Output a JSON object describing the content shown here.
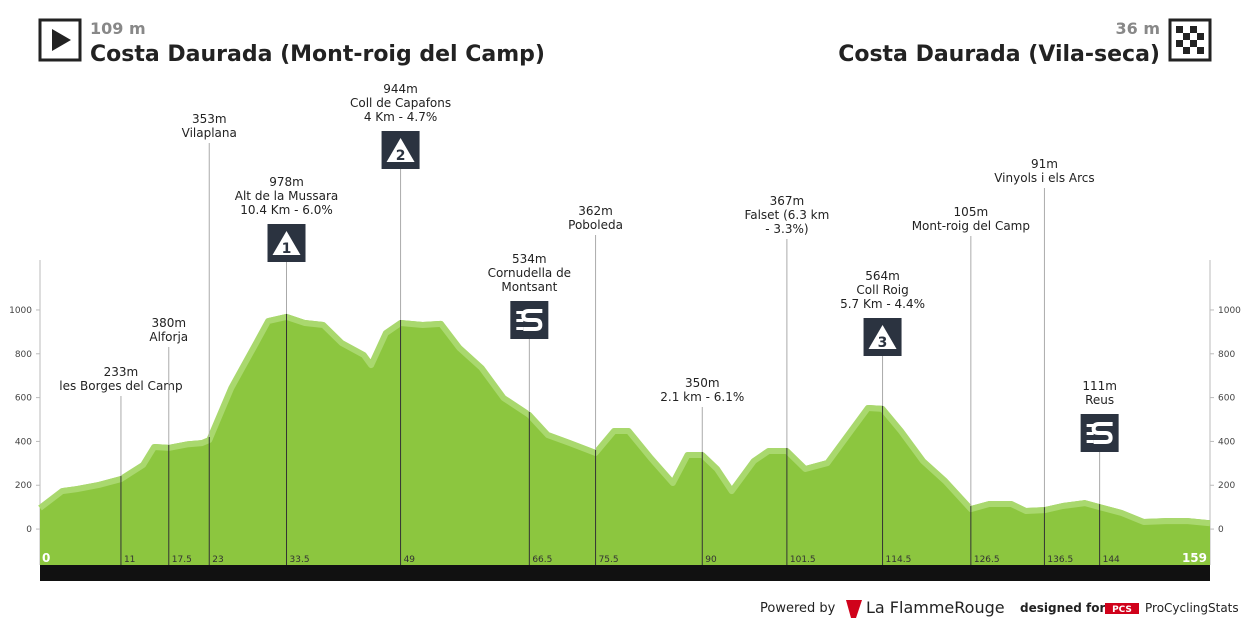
{
  "header": {
    "start": {
      "elevation": "109 m",
      "name": "Costa Daurada (Mont-roig del Camp)"
    },
    "finish": {
      "elevation": "36 m",
      "name": "Costa Daurada (Vila-seca)"
    }
  },
  "chart_data": {
    "type": "area",
    "color": "#8cc63f",
    "edge_color": "#a9d86e",
    "x": [
      0,
      3,
      5,
      8,
      11,
      14,
      15.5,
      17.5,
      20,
      22,
      23,
      26,
      29,
      31,
      33.5,
      36,
      38.5,
      41,
      44,
      45,
      47,
      49,
      52,
      54.5,
      57,
      60,
      63,
      66.5,
      69,
      72,
      75.5,
      78,
      80,
      83,
      86,
      88,
      90,
      92,
      94,
      97,
      99,
      101.5,
      104,
      107,
      110,
      112.5,
      114.5,
      117,
      120,
      123,
      126.5,
      129,
      132,
      134,
      136.5,
      139,
      142,
      144,
      147,
      150,
      153,
      156,
      159
    ],
    "values": [
      110,
      187,
      196,
      215,
      242,
      306,
      388,
      384,
      400,
      406,
      420,
      658,
      840,
      963,
      982,
      954,
      945,
      863,
      808,
      762,
      908,
      954,
      945,
      950,
      840,
      749,
      612,
      534,
      443,
      406,
      361,
      461,
      461,
      338,
      224,
      352,
      352,
      288,
      187,
      324,
      370,
      370,
      288,
      315,
      452,
      566,
      562,
      461,
      324,
      233,
      105,
      128,
      128,
      96,
      100,
      119,
      132,
      114,
      87,
      46,
      50,
      50,
      40
    ],
    "xlim": [
      0,
      159
    ],
    "ylim": [
      -164,
      1228
    ],
    "yticks": [
      0,
      200,
      400,
      600,
      800,
      1000
    ],
    "xticks": [
      0,
      159
    ],
    "waypoints": [
      {
        "km": 11,
        "lines": [
          "233m",
          "les Borges del Camp"
        ]
      },
      {
        "km": 17.5,
        "lines": [
          "380m",
          "Alforja"
        ]
      },
      {
        "km": 23,
        "lines": [
          "353m",
          "Vilaplana"
        ]
      },
      {
        "km": 33.5,
        "lines": [
          "978m",
          "Alt de la Mussara",
          "10.4 Km - 6.0%"
        ],
        "climb": "1"
      },
      {
        "km": 49,
        "lines": [
          "944m",
          "Coll de Capafons",
          "4 Km - 4.7%"
        ],
        "climb": "2"
      },
      {
        "km": 66.5,
        "lines": [
          "534m",
          "Cornudella de",
          "Montsant"
        ],
        "sprint": true
      },
      {
        "km": 75.5,
        "lines": [
          "362m",
          "Poboleda"
        ]
      },
      {
        "km": 90,
        "lines": [
          "350m",
          "2.1 km - 6.1%"
        ]
      },
      {
        "km": 101.5,
        "lines": [
          "367m",
          "Falset (6.3 km",
          "- 3.3%)"
        ]
      },
      {
        "km": 114.5,
        "lines": [
          "564m",
          "Coll Roig",
          "5.7 Km - 4.4%"
        ],
        "climb": "3"
      },
      {
        "km": 126.5,
        "lines": [
          "105m",
          "Mont-roig del Camp"
        ]
      },
      {
        "km": 136.5,
        "lines": [
          "91m",
          "Vinyols i els Arcs"
        ]
      },
      {
        "km": 144,
        "lines": [
          "111m",
          "Reus"
        ],
        "sprint": true
      }
    ]
  },
  "footer": {
    "powered_by": "Powered by",
    "brand": "La FlammeRouge",
    "designed_for": "designed for",
    "pcs": "PCS",
    "site": "ProCyclingStats"
  }
}
